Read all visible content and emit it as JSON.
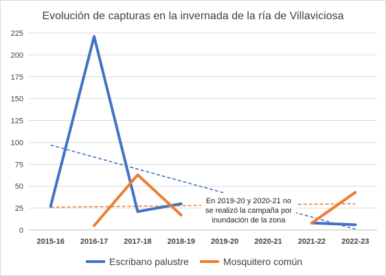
{
  "chart_data": {
    "type": "line",
    "title": "Evolución de capturas en la invernada de la ría de Villaviciosa",
    "categories": [
      "2015-16",
      "2016-17",
      "2017-18",
      "2018-19",
      "2019-20",
      "2020-21",
      "2021-22",
      "2022-23"
    ],
    "ylim": [
      0,
      225
    ],
    "yticks": [
      0,
      25,
      50,
      75,
      100,
      125,
      150,
      175,
      200,
      225
    ],
    "grid": true,
    "legend_position": "bottom",
    "series": [
      {
        "name": "Escribano palustre",
        "color": "#4472C4",
        "values": [
          27,
          221,
          21,
          30,
          null,
          null,
          8,
          6
        ],
        "trendline": {
          "start": 97,
          "end": 1
        }
      },
      {
        "name": "Mosquitero común",
        "color": "#ED7D31",
        "values": [
          null,
          5,
          63,
          17,
          null,
          null,
          8,
          43
        ],
        "trendline": {
          "start": 26,
          "end": 30
        }
      }
    ],
    "annotation": [
      "En 2019-20 y 2020-21 no",
      "se realizó la campaña por",
      "inundación de la zona"
    ]
  }
}
